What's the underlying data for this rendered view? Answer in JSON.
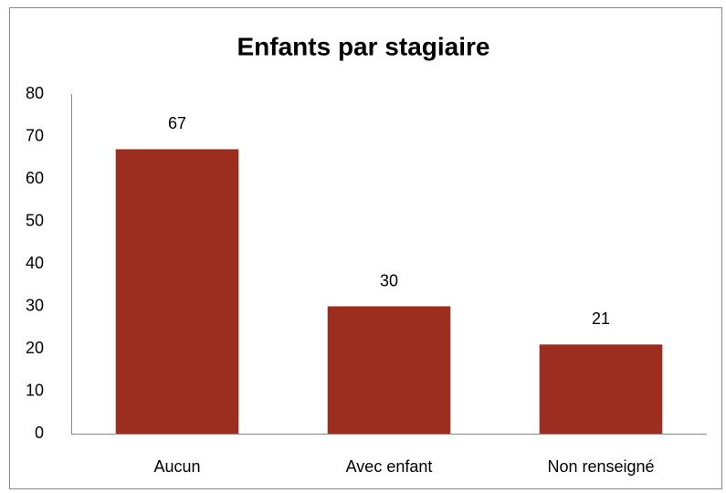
{
  "chart_data": {
    "type": "bar",
    "title": "Enfants par stagiaire",
    "categories": [
      "Aucun",
      "Avec enfant",
      "Non renseigné"
    ],
    "values": [
      67,
      30,
      21
    ],
    "color": "#9c2e1f",
    "ylim": [
      0,
      80
    ],
    "yticks": [
      0,
      10,
      20,
      30,
      40,
      50,
      60,
      70,
      80
    ],
    "grid": false
  }
}
